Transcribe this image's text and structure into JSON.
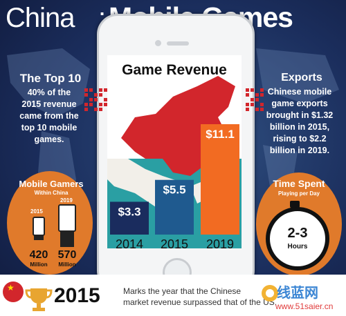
{
  "title": {
    "china": "China",
    "colon": ":",
    "mobile_games": "Mobile Games"
  },
  "top10": {
    "heading": "The Top 10",
    "body_lines": [
      "40% of the",
      "2015 revenue",
      "came from the",
      "top 10 mobile",
      "games."
    ]
  },
  "exports": {
    "heading": "Exports",
    "body_lines": [
      "Chinese mobile",
      "game exports",
      "brought in $1.32",
      "billion in 2015,",
      "rising to $2.2",
      "billion in 2019."
    ]
  },
  "gamers": {
    "heading": "Mobile Gamers",
    "subheading": "Within China",
    "year_a": "2015",
    "year_b": "2019",
    "value_a": "420",
    "value_b": "570",
    "unit_a": "Million",
    "unit_b": "Million"
  },
  "time_spent": {
    "heading": "Time Spent",
    "subheading": "Playing per Day",
    "value": "2-3",
    "unit": "Hours"
  },
  "chart_data": {
    "type": "bar",
    "title": "Game Revenue",
    "categories": [
      "2014",
      "2015",
      "2019"
    ],
    "values": [
      3.3,
      5.5,
      11.1
    ],
    "value_labels": [
      "$3.3",
      "$5.5",
      "$11.1"
    ],
    "colors": [
      "#1a2c5e",
      "#1f5a8f",
      "#f26b22"
    ],
    "ylim": [
      0,
      11.1
    ],
    "xlabel": "",
    "ylabel": ""
  },
  "footer": {
    "year": "2015",
    "text_line1": "Marks the year that the Chinese",
    "text_line2": "market revenue surpassed that of the US."
  },
  "watermark": {
    "text": "线蓝网",
    "url": "www.51saier.cn"
  }
}
